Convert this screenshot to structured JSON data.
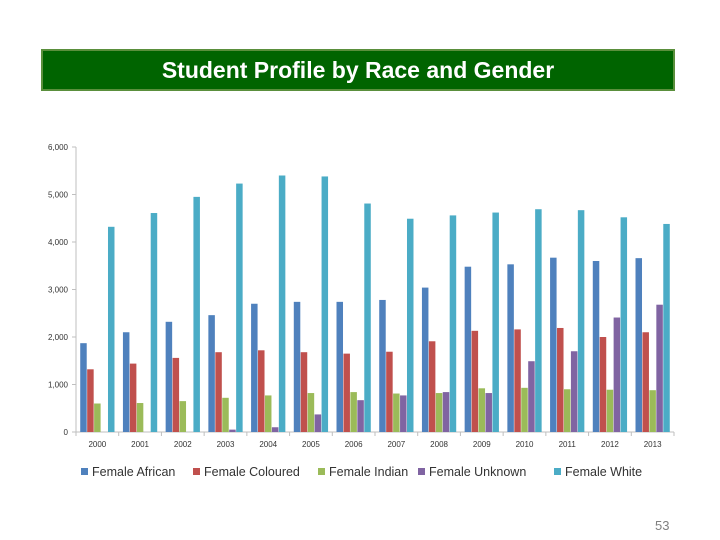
{
  "slide": {
    "title": "Student Profile by Race and Gender",
    "page_number": "53"
  },
  "colors": {
    "title_background": "#006400",
    "title_text": "#ffffff",
    "Female African": "#4f81bd",
    "Female Coloured": "#c0504d",
    "Female Indian": "#9bbb59",
    "Female Unknown": "#8064a2",
    "Female White": "#4bacc6"
  },
  "chart_data": {
    "type": "bar",
    "title": "",
    "xlabel": "",
    "ylabel": "",
    "ylim": [
      0,
      6000
    ],
    "yticks": [
      0,
      1000,
      2000,
      3000,
      4000,
      5000,
      6000
    ],
    "ytick_labels": [
      "0",
      "1,000",
      "2,000",
      "3,000",
      "4,000",
      "5,000",
      "6,000"
    ],
    "grid": false,
    "legend_position": "bottom",
    "categories": [
      "2000",
      "2001",
      "2002",
      "2003",
      "2004",
      "2005",
      "2006",
      "2007",
      "2008",
      "2009",
      "2010",
      "2011",
      "2012",
      "2013"
    ],
    "series": [
      {
        "name": "Female African",
        "values": [
          1870,
          2100,
          2320,
          2460,
          2700,
          2740,
          2740,
          2780,
          3040,
          3480,
          3530,
          3670,
          3600,
          3660
        ]
      },
      {
        "name": "Female Coloured",
        "values": [
          1320,
          1440,
          1560,
          1680,
          1720,
          1680,
          1650,
          1690,
          1910,
          2130,
          2160,
          2190,
          2000,
          2100
        ]
      },
      {
        "name": "Female Indian",
        "values": [
          600,
          610,
          650,
          720,
          770,
          820,
          840,
          810,
          820,
          920,
          930,
          900,
          890,
          880
        ]
      },
      {
        "name": "Female Unknown",
        "values": [
          0,
          0,
          0,
          50,
          100,
          370,
          670,
          770,
          840,
          820,
          1490,
          1700,
          2410,
          2680
        ]
      },
      {
        "name": "Female White",
        "values": [
          4320,
          4610,
          4950,
          5230,
          5400,
          5380,
          4810,
          4490,
          4560,
          4620,
          4690,
          4670,
          4520,
          4380
        ]
      }
    ]
  }
}
